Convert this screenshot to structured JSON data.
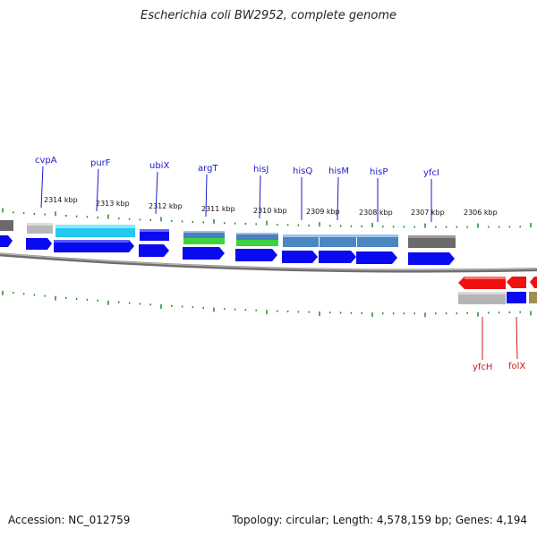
{
  "title": "Escherichia coli BW2952, complete genome",
  "footer": {
    "accession": "Accession: NC_012759",
    "summary": "Topology: circular; Length: 4,578,159 bp; Genes: 4,194"
  },
  "colors": {
    "forward_label": "#1a1acc",
    "reverse_label": "#cc1a1a",
    "tick": "#228b22",
    "backbone": "#7a7a7a",
    "blue_arrow": "#0a0af0",
    "red_arrow": "#f01010"
  },
  "scale_labels": [
    "2314 kbp",
    "2313 kbp",
    "2312 kbp",
    "2311 kbp",
    "2310 kbp",
    "2309 kbp",
    "2308 kbp",
    "2307 kbp",
    "2306 kbp"
  ],
  "forward_genes": [
    {
      "name": "cvpA"
    },
    {
      "name": "purF"
    },
    {
      "name": "ubiX"
    },
    {
      "name": "argT"
    },
    {
      "name": "hisJ"
    },
    {
      "name": "hisQ"
    },
    {
      "name": "hisM"
    },
    {
      "name": "hisP"
    },
    {
      "name": "yfcI"
    }
  ],
  "reverse_genes": [
    {
      "name": "yfcH"
    },
    {
      "name": "folX"
    }
  ]
}
